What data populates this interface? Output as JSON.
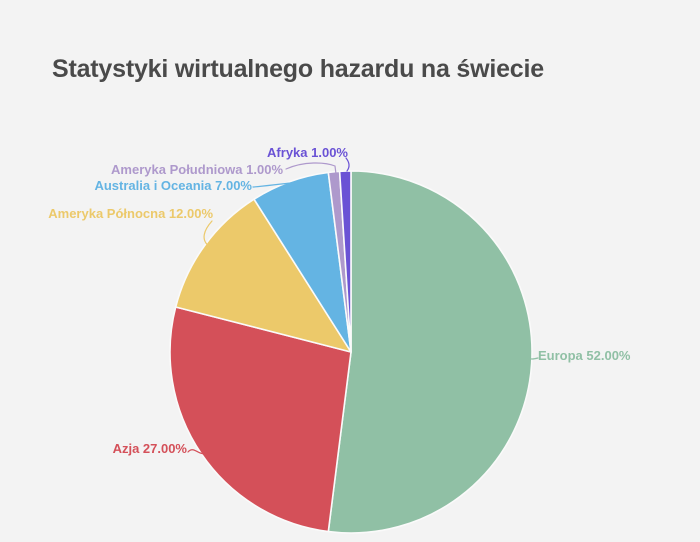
{
  "page": {
    "background": "#F3F3F3"
  },
  "title": {
    "text": "Statystyki wirtualnego hazardu na świecie",
    "color": "#4A4A4A"
  },
  "chart_data": {
    "type": "pie",
    "title": "Statystyki wirtualnego hazardu na świecie",
    "unit": "%",
    "legend": "none",
    "start_angle_deg": 0,
    "direction": "clockwise",
    "slice_gap_color": "#FAFAFA",
    "slices": [
      {
        "label": "Europa",
        "value": 52,
        "pct_text": "52.00%",
        "display": "Europa 52.00%",
        "color": "#90C0A5"
      },
      {
        "label": "Azja",
        "value": 27,
        "pct_text": "27.00%",
        "display": "Azja 27.00%",
        "color": "#D45059"
      },
      {
        "label": "Ameryka Północna",
        "value": 12,
        "pct_text": "12.00%",
        "display": "Ameryka Północna 12.00%",
        "color": "#ECC96A"
      },
      {
        "label": "Australia i Oceania",
        "value": 7,
        "pct_text": "7.00%",
        "display": "Australia i Oceania 7.00%",
        "color": "#64B4E3"
      },
      {
        "label": "Ameryka Południowa",
        "value": 1,
        "pct_text": "1.00%",
        "display": "Ameryka Południowa 1.00%",
        "color": "#AE99CC"
      },
      {
        "label": "Afryka",
        "value": 1,
        "pct_text": "1.00%",
        "display": "Afryka 1.00%",
        "color": "#6A52D5"
      }
    ]
  }
}
